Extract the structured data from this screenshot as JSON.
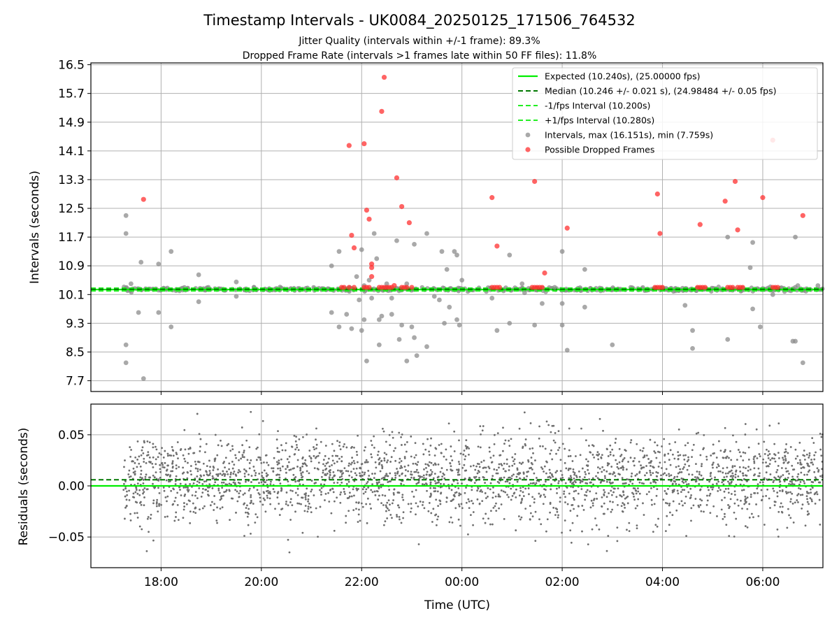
{
  "chart_data": {
    "title": "Timestamp Intervals - UK0084_20250125_171506_764532",
    "subtitle_lines": [
      "Jitter Quality (intervals within +/-1 frame): 89.3%",
      "Dropped Frame Rate (intervals >1 frames late within 50 FF files): 11.8%"
    ],
    "colors": {
      "expected": "#00ee00",
      "median": "#007700",
      "interval_band": "#22ee22",
      "intervals": "#8c8c8c",
      "dropped": "#ff3030",
      "residual_points": "#6e6e6e",
      "grid": "#b0b0b0"
    },
    "x_axis": {
      "label": "Time (UTC)",
      "range_hours": [
        16.6,
        31.2
      ],
      "ticks": [
        {
          "h": 18,
          "label": "18:00"
        },
        {
          "h": 20,
          "label": "20:00"
        },
        {
          "h": 22,
          "label": "22:00"
        },
        {
          "h": 24,
          "label": "00:00"
        },
        {
          "h": 26,
          "label": "02:00"
        },
        {
          "h": 28,
          "label": "04:00"
        },
        {
          "h": 30,
          "label": "06:00"
        }
      ],
      "data_span_hours": [
        17.25,
        31.2
      ]
    },
    "top_panel": {
      "type": "scatter",
      "ylabel": "Intervals (seconds)",
      "ylim": [
        7.4,
        16.55
      ],
      "yticks": [
        "7.7",
        "8.5",
        "9.3",
        "10.1",
        "10.9",
        "11.7",
        "12.5",
        "13.3",
        "14.1",
        "14.9",
        "15.7",
        "16.5"
      ],
      "lines": {
        "expected": 10.24,
        "median": 10.246,
        "lower": 10.2,
        "upper": 10.28
      },
      "legend_position": "top-right",
      "legend": [
        {
          "kind": "solid",
          "label": "Expected (10.240s), (25.00000 fps)"
        },
        {
          "kind": "dashed-dark",
          "label": "Median (10.246 +/- 0.021 s), (24.98484 +/- 0.05 fps)"
        },
        {
          "kind": "dashed-light",
          "label": "-1/fps Interval (10.200s)"
        },
        {
          "kind": "dashed-light",
          "label": "+1/fps Interval (10.280s)"
        },
        {
          "kind": "dot-gray",
          "label": "Intervals, max (16.151s), min (7.759s)"
        },
        {
          "kind": "dot-red",
          "label": "Possible Dropped Frames"
        }
      ],
      "outliers": [
        [
          17.3,
          12.3
        ],
        [
          17.3,
          11.8
        ],
        [
          17.3,
          8.7
        ],
        [
          17.3,
          8.2
        ],
        [
          17.4,
          10.4
        ],
        [
          17.6,
          11.0
        ],
        [
          17.55,
          9.6
        ],
        [
          17.65,
          7.76
        ],
        [
          17.95,
          10.95
        ],
        [
          17.95,
          9.6
        ],
        [
          18.2,
          11.3
        ],
        [
          18.2,
          9.2
        ],
        [
          18.75,
          10.65
        ],
        [
          18.75,
          9.9
        ],
        [
          19.5,
          10.45
        ],
        [
          19.5,
          10.05
        ],
        [
          21.4,
          9.6
        ],
        [
          21.55,
          9.2
        ],
        [
          21.7,
          9.55
        ],
        [
          21.8,
          9.15
        ],
        [
          21.4,
          10.9
        ],
        [
          21.55,
          11.3
        ],
        [
          21.9,
          10.6
        ],
        [
          22.0,
          11.35
        ],
        [
          22.05,
          10.35
        ],
        [
          21.95,
          9.95
        ],
        [
          22.0,
          9.1
        ],
        [
          22.05,
          9.4
        ],
        [
          22.1,
          8.25
        ],
        [
          22.15,
          10.5
        ],
        [
          22.2,
          10.0
        ],
        [
          22.25,
          11.8
        ],
        [
          22.3,
          11.1
        ],
        [
          22.35,
          9.4
        ],
        [
          22.4,
          9.5
        ],
        [
          22.35,
          8.7
        ],
        [
          22.5,
          10.4
        ],
        [
          22.6,
          10.0
        ],
        [
          22.6,
          9.55
        ],
        [
          22.7,
          11.6
        ],
        [
          22.75,
          8.85
        ],
        [
          22.8,
          9.25
        ],
        [
          22.9,
          10.4
        ],
        [
          22.9,
          8.25
        ],
        [
          23.0,
          9.2
        ],
        [
          23.05,
          8.9
        ],
        [
          23.05,
          11.5
        ],
        [
          23.1,
          8.4
        ],
        [
          23.3,
          11.8
        ],
        [
          23.3,
          8.65
        ],
        [
          23.45,
          10.05
        ],
        [
          23.55,
          9.95
        ],
        [
          23.6,
          11.3
        ],
        [
          23.65,
          9.3
        ],
        [
          23.75,
          9.75
        ],
        [
          23.7,
          10.8
        ],
        [
          23.85,
          11.3
        ],
        [
          23.9,
          11.2
        ],
        [
          23.9,
          9.4
        ],
        [
          23.95,
          9.25
        ],
        [
          24.0,
          10.5
        ],
        [
          24.6,
          10.0
        ],
        [
          24.7,
          9.1
        ],
        [
          24.95,
          11.2
        ],
        [
          24.95,
          9.3
        ],
        [
          25.2,
          10.4
        ],
        [
          25.25,
          10.15
        ],
        [
          25.45,
          9.25
        ],
        [
          25.6,
          9.85
        ],
        [
          25.85,
          10.3
        ],
        [
          26.0,
          11.3
        ],
        [
          26.0,
          9.85
        ],
        [
          26.0,
          9.25
        ],
        [
          26.1,
          8.55
        ],
        [
          26.45,
          10.8
        ],
        [
          26.45,
          9.75
        ],
        [
          27.0,
          8.7
        ],
        [
          28.45,
          9.8
        ],
        [
          28.6,
          9.1
        ],
        [
          28.6,
          8.6
        ],
        [
          29.3,
          11.7
        ],
        [
          29.3,
          8.85
        ],
        [
          29.75,
          10.85
        ],
        [
          29.8,
          11.55
        ],
        [
          29.8,
          9.7
        ],
        [
          29.95,
          9.2
        ],
        [
          30.2,
          10.1
        ],
        [
          30.65,
          11.7
        ],
        [
          30.6,
          8.8
        ],
        [
          30.65,
          8.8
        ],
        [
          30.8,
          8.2
        ],
        [
          30.65,
          10.3
        ],
        [
          30.7,
          10.35
        ],
        [
          31.1,
          10.35
        ]
      ],
      "dropped": [
        [
          17.65,
          12.75
        ],
        [
          21.8,
          11.75
        ],
        [
          21.85,
          11.4
        ],
        [
          22.05,
          14.3
        ],
        [
          22.1,
          12.45
        ],
        [
          22.15,
          12.2
        ],
        [
          22.2,
          10.85
        ],
        [
          22.2,
          10.95
        ],
        [
          22.2,
          10.6
        ],
        [
          22.4,
          15.2
        ],
        [
          22.45,
          16.15
        ],
        [
          21.75,
          14.25
        ],
        [
          22.7,
          13.35
        ],
        [
          22.8,
          12.55
        ],
        [
          22.95,
          12.1
        ],
        [
          22.65,
          10.35
        ],
        [
          24.6,
          12.8
        ],
        [
          24.7,
          11.45
        ],
        [
          25.45,
          13.25
        ],
        [
          25.65,
          10.7
        ],
        [
          26.1,
          11.95
        ],
        [
          27.9,
          12.9
        ],
        [
          27.95,
          11.8
        ],
        [
          28.75,
          12.05
        ],
        [
          29.25,
          12.7
        ],
        [
          29.45,
          13.25
        ],
        [
          29.5,
          11.9
        ],
        [
          30.0,
          12.8
        ],
        [
          30.2,
          14.4
        ],
        [
          30.8,
          12.3
        ],
        [
          21.6,
          10.3
        ],
        [
          21.65,
          10.3
        ],
        [
          21.75,
          10.3
        ],
        [
          21.85,
          10.3
        ],
        [
          22.05,
          10.3
        ],
        [
          22.1,
          10.3
        ],
        [
          22.15,
          10.3
        ],
        [
          22.35,
          10.3
        ],
        [
          22.4,
          10.3
        ],
        [
          22.45,
          10.3
        ],
        [
          22.5,
          10.3
        ],
        [
          22.55,
          10.3
        ],
        [
          22.6,
          10.3
        ],
        [
          22.8,
          10.3
        ],
        [
          22.85,
          10.3
        ],
        [
          22.9,
          10.3
        ],
        [
          23.0,
          10.3
        ],
        [
          24.6,
          10.3
        ],
        [
          24.65,
          10.3
        ],
        [
          24.7,
          10.3
        ],
        [
          24.75,
          10.3
        ],
        [
          25.4,
          10.3
        ],
        [
          25.45,
          10.3
        ],
        [
          25.5,
          10.3
        ],
        [
          25.55,
          10.3
        ],
        [
          25.6,
          10.3
        ],
        [
          27.85,
          10.3
        ],
        [
          27.9,
          10.3
        ],
        [
          27.95,
          10.3
        ],
        [
          28.0,
          10.3
        ],
        [
          28.7,
          10.3
        ],
        [
          28.75,
          10.3
        ],
        [
          28.8,
          10.3
        ],
        [
          28.85,
          10.3
        ],
        [
          29.3,
          10.3
        ],
        [
          29.35,
          10.3
        ],
        [
          29.4,
          10.3
        ],
        [
          29.5,
          10.3
        ],
        [
          29.55,
          10.3
        ],
        [
          29.6,
          10.3
        ],
        [
          30.2,
          10.3
        ],
        [
          30.25,
          10.3
        ],
        [
          30.3,
          10.3
        ]
      ]
    },
    "bottom_panel": {
      "type": "scatter",
      "ylabel": "Residuals (seconds)",
      "ylim": [
        -0.08,
        0.08
      ],
      "yticks": [
        "−0.05",
        "0.00",
        "0.05"
      ],
      "ytick_values": [
        -0.05,
        0.0,
        0.05
      ],
      "lines": {
        "expected": 0.0,
        "median": 0.006
      },
      "residual_spread_sd": 0.021
    }
  }
}
